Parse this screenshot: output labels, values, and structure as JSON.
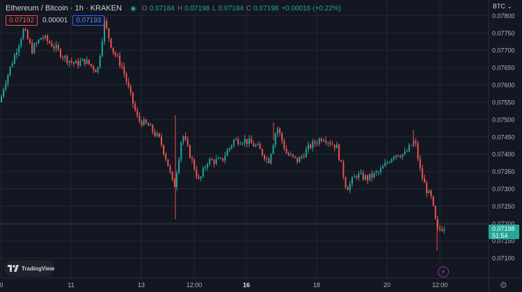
{
  "header": {
    "title": "Ethereum / Bitcoin · 1h · KRAKEN",
    "o_label": "O",
    "o_value": "0.07184",
    "h_label": "H",
    "h_value": "0.07198",
    "l_label": "L",
    "l_value": "0.07184",
    "c_label": "C",
    "c_value": "0.07198",
    "change": "+0.00016 (+0.22%)"
  },
  "bid_price": "0.07192",
  "spread": "0.00001",
  "ask_price": "0.07193",
  "currency_menu": "BTC",
  "current_price_tag": {
    "price": "0.07198",
    "countdown": "51:54"
  },
  "logo_text": "TradingView",
  "icons": {
    "status": "market-open-dot-icon",
    "logo": "tradingview-logo-icon",
    "alert": "lightning-icon",
    "settings": "gear-icon",
    "dropdown": "chevron-down-icon"
  },
  "colors": {
    "background": "#131722",
    "up": "#26a69a",
    "down": "#ef5350",
    "grid": "#242832",
    "text": "#d1d4dc"
  },
  "chart_data": {
    "type": "candlestick",
    "title": "Ethereum / Bitcoin · 1h · KRAKEN",
    "ylim": [
      0.0708,
      0.0782
    ],
    "y_ticks": [
      "0.07800",
      "0.07750",
      "0.07700",
      "0.07650",
      "0.07600",
      "0.07550",
      "0.07500",
      "0.07450",
      "0.07400",
      "0.07350",
      "0.07300",
      "0.07250",
      "0.07200",
      "0.07150",
      "0.07100"
    ],
    "x_ticks": [
      {
        "label": "0",
        "bold": false
      },
      {
        "label": "11",
        "bold": false
      },
      {
        "label": "13",
        "bold": false
      },
      {
        "label": "12:00",
        "bold": false
      },
      {
        "label": "16",
        "bold": true
      },
      {
        "label": "18",
        "bold": false
      },
      {
        "label": "20",
        "bold": false
      },
      {
        "label": "12:00",
        "bold": false
      }
    ],
    "current_price": 0.07198,
    "key_path": [
      [
        0,
        0.0755
      ],
      [
        6,
        0.076
      ],
      [
        20,
        0.0768
      ],
      [
        34,
        0.0776
      ],
      [
        46,
        0.077
      ],
      [
        60,
        0.0774
      ],
      [
        78,
        0.0771
      ],
      [
        92,
        0.0768
      ],
      [
        108,
        0.0766
      ],
      [
        122,
        0.0767
      ],
      [
        140,
        0.0764
      ],
      [
        150,
        0.0778
      ],
      [
        162,
        0.077
      ],
      [
        176,
        0.0765
      ],
      [
        186,
        0.0758
      ],
      [
        198,
        0.075
      ],
      [
        214,
        0.0748
      ],
      [
        230,
        0.0744
      ],
      [
        240,
        0.0738
      ],
      [
        250,
        0.073
      ],
      [
        262,
        0.0746
      ],
      [
        276,
        0.0738
      ],
      [
        286,
        0.0732
      ],
      [
        298,
        0.0738
      ],
      [
        318,
        0.0738
      ],
      [
        336,
        0.0744
      ],
      [
        352,
        0.0744
      ],
      [
        370,
        0.0742
      ],
      [
        386,
        0.0738
      ],
      [
        398,
        0.0748
      ],
      [
        412,
        0.074
      ],
      [
        428,
        0.0738
      ],
      [
        444,
        0.0742
      ],
      [
        464,
        0.0745
      ],
      [
        484,
        0.0742
      ],
      [
        498,
        0.073
      ],
      [
        512,
        0.0734
      ],
      [
        528,
        0.0733
      ],
      [
        546,
        0.0735
      ],
      [
        566,
        0.074
      ],
      [
        582,
        0.074
      ],
      [
        596,
        0.0744
      ],
      [
        604,
        0.0735
      ],
      [
        612,
        0.073
      ],
      [
        620,
        0.0727
      ],
      [
        628,
        0.0718
      ],
      [
        638,
        0.0719
      ]
    ]
  }
}
